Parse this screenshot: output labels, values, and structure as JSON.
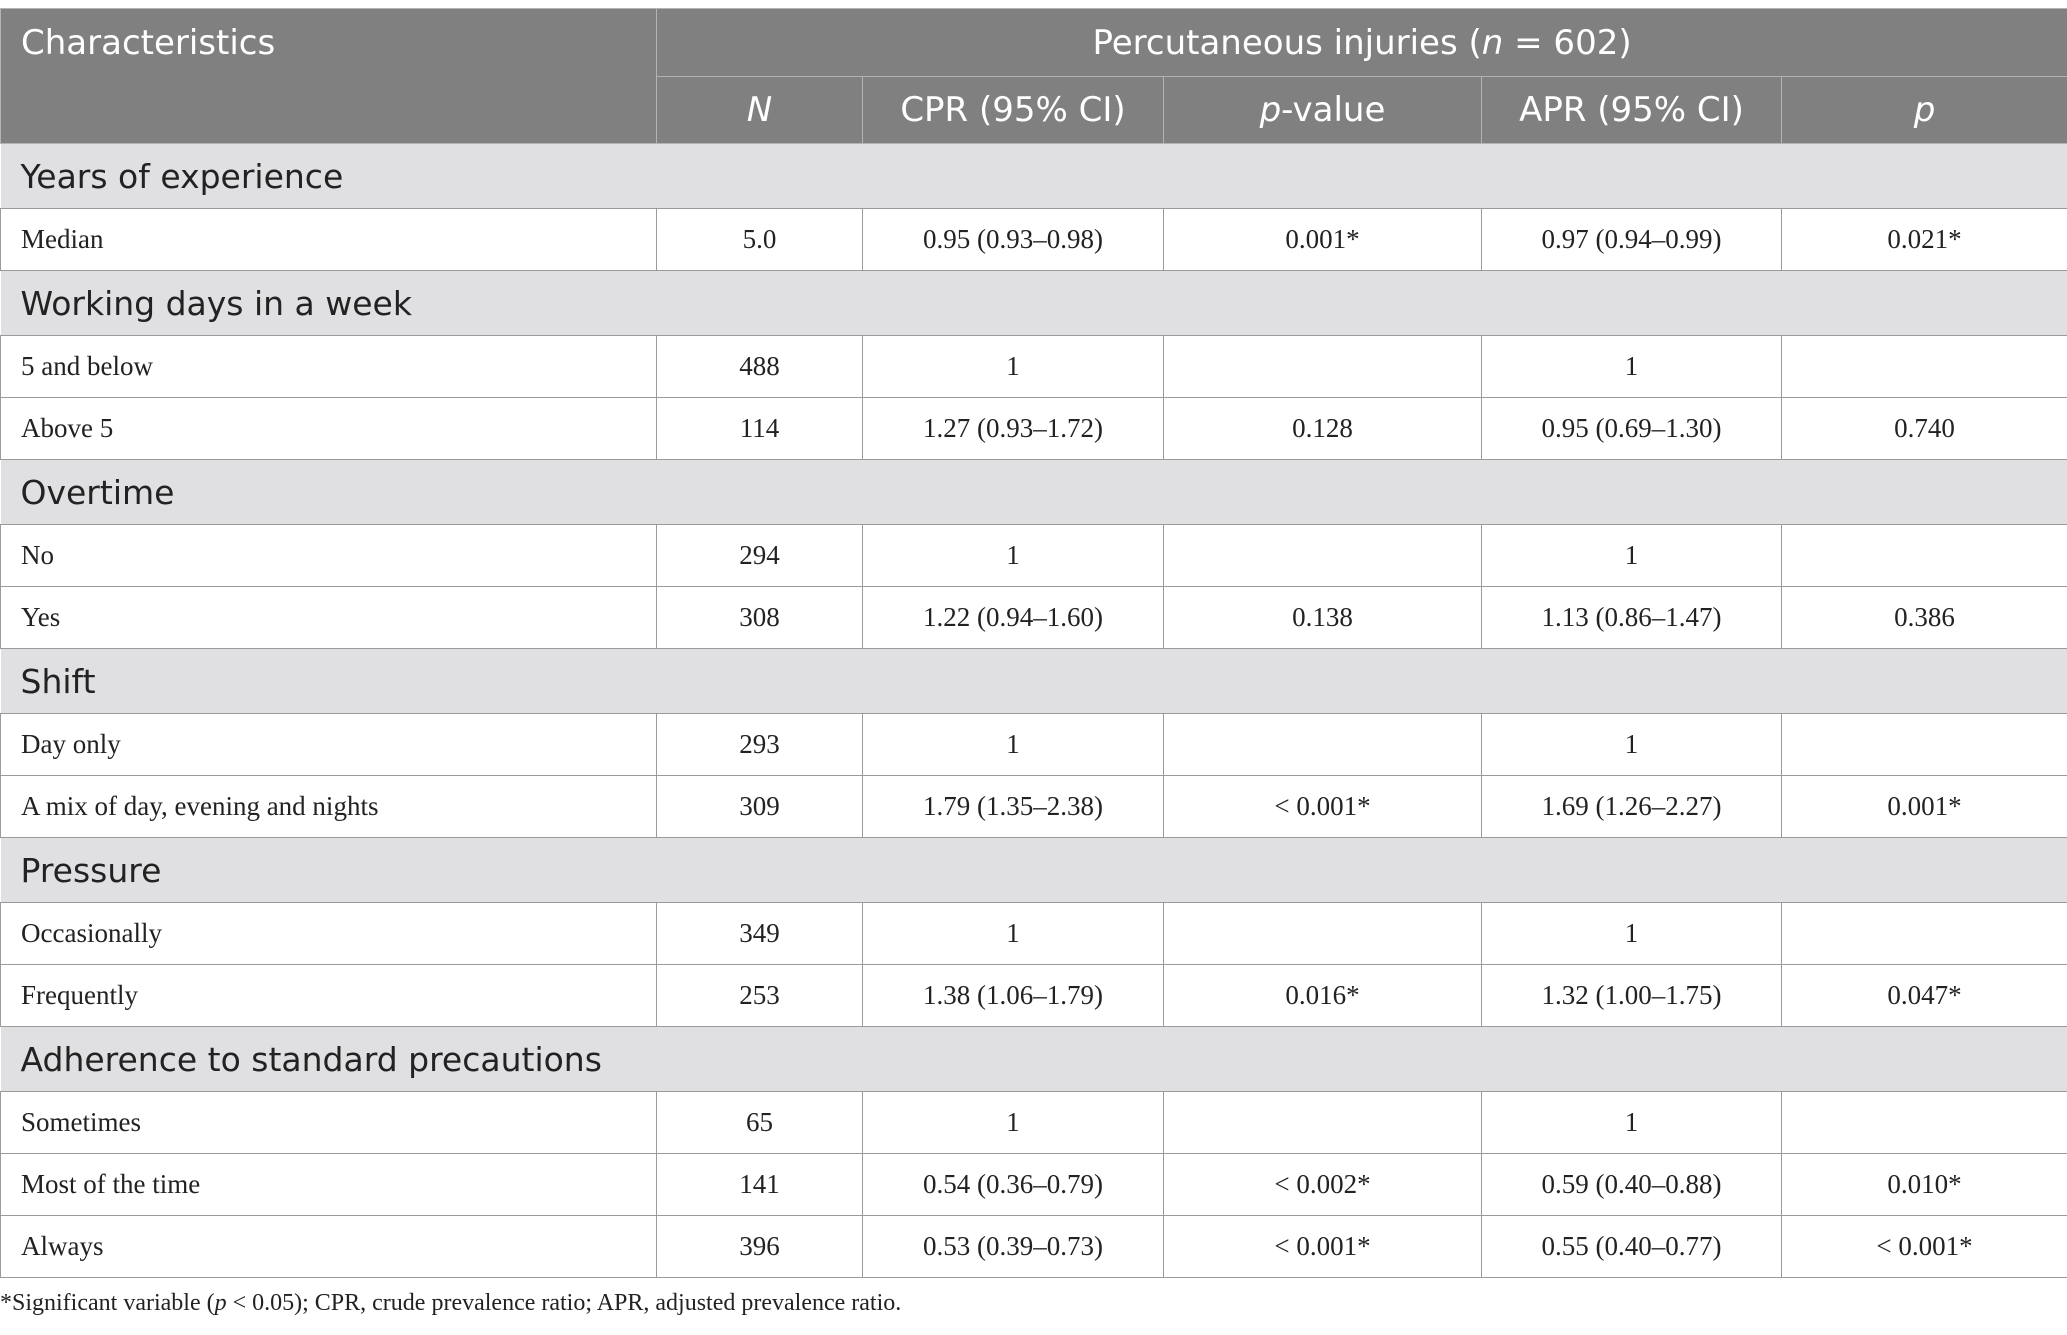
{
  "header": {
    "characteristics": "Characteristics",
    "group_prefix": "Percutaneous injuries (",
    "group_n": "n",
    "group_suffix": " = 602)",
    "col_n": "N",
    "col_cpr": "CPR (95% CI)",
    "col_pvalue_p": "p",
    "col_pvalue_rest": "-value",
    "col_apr": "APR (95% CI)",
    "col_p": "p"
  },
  "sections": [
    {
      "title": "Years of experience",
      "rows": [
        {
          "label": "Median",
          "n": "5.0",
          "cpr": "0.95 (0.93–0.98)",
          "p1": "0.001*",
          "apr": "0.97 (0.94–0.99)",
          "p2": "0.021*"
        }
      ]
    },
    {
      "title": "Working days in a week",
      "rows": [
        {
          "label": "5 and below",
          "n": "488",
          "cpr": "1",
          "p1": "",
          "apr": "1",
          "p2": ""
        },
        {
          "label": "Above 5",
          "n": "114",
          "cpr": "1.27 (0.93–1.72)",
          "p1": "0.128",
          "apr": "0.95 (0.69–1.30)",
          "p2": "0.740"
        }
      ]
    },
    {
      "title": "Overtime",
      "rows": [
        {
          "label": "No",
          "n": "294",
          "cpr": "1",
          "p1": "",
          "apr": "1",
          "p2": ""
        },
        {
          "label": "Yes",
          "n": "308",
          "cpr": "1.22 (0.94–1.60)",
          "p1": "0.138",
          "apr": "1.13 (0.86–1.47)",
          "p2": "0.386"
        }
      ]
    },
    {
      "title": "Shift",
      "rows": [
        {
          "label": "Day only",
          "n": "293",
          "cpr": "1",
          "p1": "",
          "apr": "1",
          "p2": ""
        },
        {
          "label": "A mix of day, evening and nights",
          "n": "309",
          "cpr": "1.79 (1.35–2.38)",
          "p1": "< 0.001*",
          "apr": "1.69 (1.26–2.27)",
          "p2": "0.001*"
        }
      ]
    },
    {
      "title": "Pressure",
      "rows": [
        {
          "label": "Occasionally",
          "n": "349",
          "cpr": "1",
          "p1": "",
          "apr": "1",
          "p2": ""
        },
        {
          "label": "Frequently",
          "n": "253",
          "cpr": "1.38 (1.06–1.79)",
          "p1": "0.016*",
          "apr": "1.32 (1.00–1.75)",
          "p2": "0.047*"
        }
      ]
    },
    {
      "title": "Adherence to standard precautions",
      "rows": [
        {
          "label": "Sometimes",
          "n": "65",
          "cpr": "1",
          "p1": "",
          "apr": "1",
          "p2": ""
        },
        {
          "label": "Most of the time",
          "n": "141",
          "cpr": "0.54 (0.36–0.79)",
          "p1": "< 0.002*",
          "apr": "0.59 (0.40–0.88)",
          "p2": "0.010*"
        },
        {
          "label": "Always",
          "n": "396",
          "cpr": "0.53 (0.39–0.73)",
          "p1": "< 0.001*",
          "apr": "0.55 (0.40–0.77)",
          "p2": "< 0.001*"
        }
      ]
    }
  ],
  "footnote": {
    "before": "*Significant variable (",
    "p": "p",
    "after": " < 0.05); CPR, crude prevalence ratio; APR, adjusted prevalence ratio."
  }
}
